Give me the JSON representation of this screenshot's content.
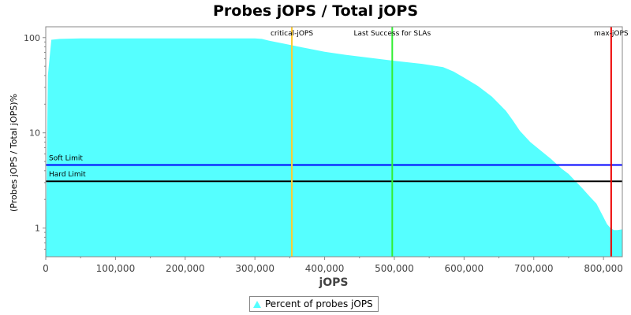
{
  "chart_data": {
    "type": "area",
    "title": "Probes jOPS / Total jOPS",
    "xlabel": "jOPS",
    "ylabel": "(Probes jOPS / Total jOPS)%",
    "y_scale": "log",
    "xlim": [
      0,
      827000
    ],
    "ylim": [
      0.5,
      130
    ],
    "grid": false,
    "legend_placement": "bottom",
    "x_ticks": [
      0,
      100000,
      200000,
      300000,
      400000,
      500000,
      600000,
      700000,
      800000
    ],
    "x_tick_labels": [
      "0",
      "100,000",
      "200,000",
      "300,000",
      "400,000",
      "500,000",
      "600,000",
      "700,000",
      "800,000"
    ],
    "y_ticks": [
      1,
      10,
      100
    ],
    "y_tick_labels": [
      "1",
      "10",
      "100"
    ],
    "series": [
      {
        "name": "Percent of probes jOPS",
        "color": "#55ffff",
        "x": [
          0,
          3000,
          8000,
          20000,
          50000,
          100000,
          200000,
          300000,
          310000,
          320000,
          340000,
          360000,
          380000,
          400000,
          430000,
          460000,
          500000,
          540000,
          570000,
          585000,
          600000,
          620000,
          640000,
          660000,
          670000,
          680000,
          695000,
          710000,
          725000,
          740000,
          750000,
          760000,
          770000,
          780000,
          790000,
          800000,
          805000,
          810000,
          815000,
          820000,
          827000
        ],
        "y": [
          0.5,
          40,
          95,
          97,
          98,
          98,
          98,
          98,
          97,
          93,
          87,
          81,
          76,
          71,
          66,
          62,
          57,
          53,
          49,
          44,
          38,
          31,
          24,
          17,
          13.5,
          10.5,
          8,
          6.5,
          5.3,
          4.2,
          3.7,
          3.1,
          2.6,
          2.15,
          1.8,
          1.3,
          1.1,
          1.0,
          0.95,
          0.95,
          0.97
        ]
      }
    ],
    "markers": {
      "vertical": [
        {
          "label": "critical-jOPS",
          "x": 353000,
          "color": "#ffcc33"
        },
        {
          "label": "Last Success for SLAs",
          "x": 497000,
          "color": "#33ee33"
        },
        {
          "label": "max-jOPS",
          "x": 811000,
          "color": "#ee0000"
        }
      ],
      "horizontal": [
        {
          "label": "Soft Limit",
          "y": 4.6,
          "color": "#0000ff"
        },
        {
          "label": "Hard Limit",
          "y": 3.1,
          "color": "#000000"
        }
      ]
    }
  },
  "legend": {
    "label": "Percent of probes jOPS"
  }
}
